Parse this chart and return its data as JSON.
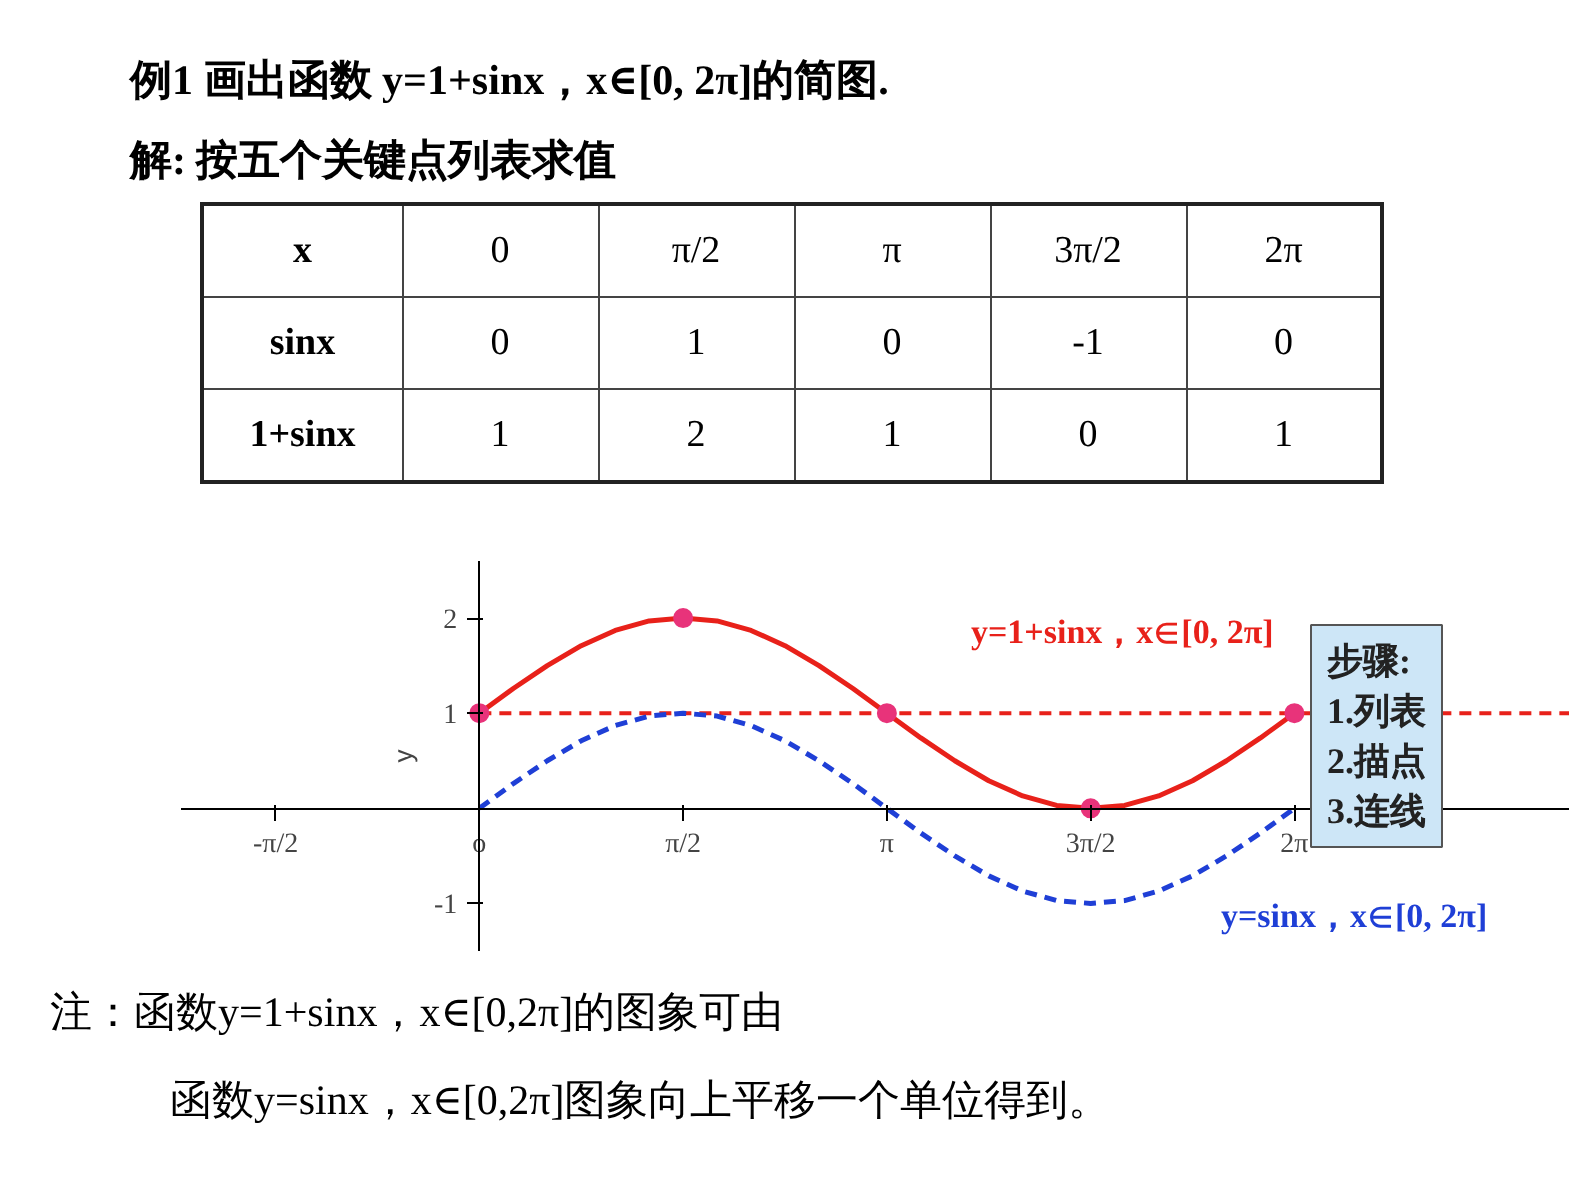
{
  "chart_data": {
    "type": "line",
    "ylabel": "y",
    "grid": false,
    "legend": false,
    "xlim": [
      -2.3,
      8.4
    ],
    "ylim": [
      -1.5,
      2.6
    ],
    "xticks": [
      {
        "value": -1.5708,
        "label": "-π/2"
      },
      {
        "value": 0,
        "label": "o"
      },
      {
        "value": 1.5708,
        "label": "π/2"
      },
      {
        "value": 3.1416,
        "label": "π"
      },
      {
        "value": 4.7124,
        "label": "3π/2"
      },
      {
        "value": 6.2832,
        "label": "2π"
      }
    ],
    "yticks": [
      -1,
      1,
      2
    ],
    "x": [
      0,
      0.2618,
      0.5236,
      0.7854,
      1.0472,
      1.309,
      1.5708,
      1.8326,
      2.0944,
      2.3562,
      2.618,
      2.8798,
      3.1416,
      3.4034,
      3.6652,
      3.927,
      4.1888,
      4.4506,
      4.7124,
      4.9742,
      5.236,
      5.4978,
      5.7596,
      6.0214,
      6.2832
    ],
    "series": [
      {
        "name": "y=1+sinx，x∈[0, 2π]",
        "color": "#e8211a",
        "line_style": "solid",
        "marker": "none",
        "values": [
          1,
          1.26,
          1.5,
          1.71,
          1.87,
          1.97,
          2,
          1.97,
          1.87,
          1.71,
          1.5,
          1.26,
          1,
          0.74,
          0.5,
          0.29,
          0.13,
          0.03,
          0,
          0.03,
          0.13,
          0.29,
          0.5,
          0.74,
          1
        ]
      },
      {
        "name": "y=sinx，x∈[0, 2π]",
        "color": "#1f3fd6",
        "line_style": "dashed",
        "marker": "none",
        "values": [
          0,
          0.26,
          0.5,
          0.71,
          0.87,
          0.97,
          1,
          0.97,
          0.87,
          0.71,
          0.5,
          0.26,
          0,
          -0.26,
          -0.5,
          -0.71,
          -0.87,
          -0.97,
          -1,
          -0.97,
          -0.87,
          -0.71,
          -0.5,
          -0.26,
          0
        ]
      },
      {
        "type": "scatter",
        "color": "#e8337a",
        "marker": "circle",
        "x": [
          0,
          1.5708,
          3.1416,
          4.7124,
          6.2832
        ],
        "values": [
          1,
          2,
          1,
          0,
          1
        ]
      }
    ],
    "ref_lines": [
      {
        "axis": "y",
        "value": 1,
        "color": "#e8211a",
        "line_style": "dashed"
      }
    ],
    "annotations": [
      "例1 画出函数 y=1+sinx，x∈[0, 2π]的简图.",
      "解:   按五个关键点列表求值",
      "x",
      "0",
      "π/2",
      "π",
      "3π/2",
      "2π",
      "sinx",
      "0",
      "1",
      "0",
      "-1",
      "0",
      "1+sinx",
      "1",
      "2",
      "1",
      "0",
      "1",
      "步骤:",
      "1.列表",
      "2.描点",
      "3.连线",
      "注：函数y=1+sinx，x∈[0,2π]的图象可由",
      "函数y=sinx，x∈[0,2π]图象向上平移一个单位得到。"
    ]
  }
}
